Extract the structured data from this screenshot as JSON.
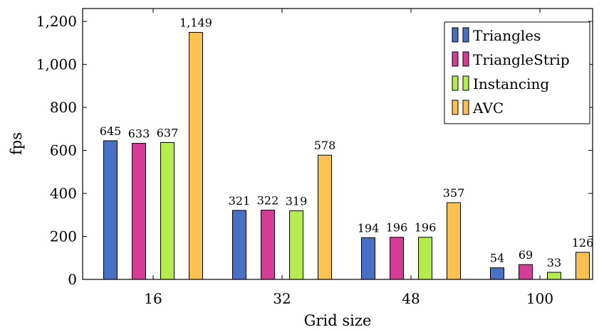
{
  "chart_data": {
    "type": "bar",
    "title": "",
    "xlabel": "Grid size",
    "ylabel": "fps",
    "categories": [
      "16",
      "32",
      "48",
      "100"
    ],
    "ylim": [
      0,
      1260
    ],
    "yticks": [
      0,
      200,
      400,
      600,
      800,
      1000,
      1200
    ],
    "ytick_labels": [
      "0",
      "200",
      "400",
      "600",
      "800",
      "1,000",
      "1,200"
    ],
    "grid": false,
    "legend_position": "top-right",
    "series": [
      {
        "name": "Triangles",
        "color": "#4a6fc7",
        "values": [
          645,
          321,
          194,
          54
        ],
        "labels": [
          "645",
          "321",
          "194",
          "54"
        ]
      },
      {
        "name": "TriangleStrip",
        "color": "#d43c95",
        "values": [
          633,
          322,
          196,
          69
        ],
        "labels": [
          "633",
          "322",
          "196",
          "69"
        ]
      },
      {
        "name": "Instancing",
        "color": "#b4ec4c",
        "values": [
          637,
          319,
          196,
          33
        ],
        "labels": [
          "637",
          "319",
          "196",
          "33"
        ]
      },
      {
        "name": "AVC",
        "color": "#fdc150",
        "values": [
          1149,
          578,
          357,
          126
        ],
        "labels": [
          "1,149",
          "578",
          "357",
          "126"
        ]
      }
    ]
  }
}
